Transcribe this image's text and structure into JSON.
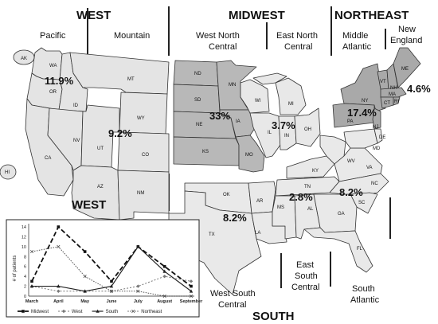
{
  "regions": {
    "west": "WEST",
    "midwest": "MIDWEST",
    "northeast": "NORTHEAST",
    "south": "SOUTH"
  },
  "divisions": {
    "pacific": {
      "name": "Pacific",
      "pct": "11.9%"
    },
    "mountain": {
      "name": "Mountain",
      "pct": "9.2%"
    },
    "wnc_line1": "West North",
    "wnc_line2": "Central",
    "wnc_pct": "33%",
    "enc_line1": "East North",
    "enc_line2": "Central",
    "enc_pct": "3.7%",
    "ma_line1": "Middle",
    "ma_line2": "Atlantic",
    "ma_pct": "17.4%",
    "ne_line1": "New",
    "ne_line2": "England",
    "ne_pct": "4.6%",
    "wsc_line1": "West South",
    "wsc_line2": "Central",
    "wsc_pct": "8.2%",
    "esc_line1": "East",
    "esc_line2": "South",
    "esc_line3": "Central",
    "esc_pct": "2.8%",
    "sa_line1": "South",
    "sa_line2": "Atlantic",
    "sa_pct": "8.2%"
  },
  "states": {
    "AK": "AK",
    "HI": "HI",
    "WA": "WA",
    "OR": "OR",
    "CA": "CA",
    "ID": "ID",
    "NV": "NV",
    "MT": "MT",
    "WY": "WY",
    "UT": "UT",
    "CO": "CO",
    "AZ": "AZ",
    "NM": "NM",
    "ND": "ND",
    "SD": "SD",
    "NE": "NE",
    "KS": "KS",
    "MN": "MN",
    "IA": "IA",
    "MO": "MO",
    "WI": "WI",
    "MI": "MI",
    "IL": "IL",
    "IN": "IN",
    "OH": "OH",
    "NY": "NY",
    "PA": "PA",
    "NJ": "NJ",
    "ME": "ME",
    "VT": "VT",
    "NH": "NH",
    "MA": "MA",
    "CT": "CT",
    "RI": "RI",
    "OK": "OK",
    "TX": "TX",
    "AR": "AR",
    "LA": "LA",
    "KY": "KY",
    "TN": "TN",
    "MS": "MS",
    "AL": "AL",
    "WV": "WV",
    "VA": "VA",
    "NC": "NC",
    "SC": "SC",
    "GA": "GA",
    "FL": "FL",
    "MD": "MD",
    "DE": "DE"
  },
  "colors": {
    "west_fill": "#e4e4e4",
    "midwest_fill": "#b8b8b8",
    "enc_fill": "#e8e8e8",
    "northeast_fill": "#a9a9a9",
    "south_fill": "#e9e9e9",
    "outline": "#333333"
  },
  "chart_data": {
    "type": "line",
    "categories": [
      "March",
      "April",
      "May",
      "June",
      "July",
      "August",
      "September"
    ],
    "ylabel": "# of patients",
    "ylim": [
      0,
      14
    ],
    "yticks": [
      0,
      2,
      4,
      6,
      8,
      10,
      12,
      14
    ],
    "series": [
      {
        "name": "Midwest",
        "values": [
          3,
          14,
          9,
          3,
          10,
          6,
          2
        ],
        "color": "#111111",
        "dash": "6,3",
        "marker": "square",
        "width": 1.8
      },
      {
        "name": "West",
        "values": [
          2,
          1,
          1,
          1,
          2,
          4,
          3
        ],
        "color": "#777777",
        "dash": "2,2",
        "marker": "diamond",
        "width": 1
      },
      {
        "name": "South",
        "values": [
          2,
          2,
          1,
          2,
          10,
          5,
          1
        ],
        "color": "#222222",
        "dash": "",
        "marker": "triangle",
        "width": 1.2
      },
      {
        "name": "Northeast",
        "values": [
          9,
          10,
          4,
          1,
          1,
          0,
          0
        ],
        "color": "#555555",
        "dash": "1.5,1.5",
        "marker": "x",
        "width": 1
      }
    ]
  }
}
